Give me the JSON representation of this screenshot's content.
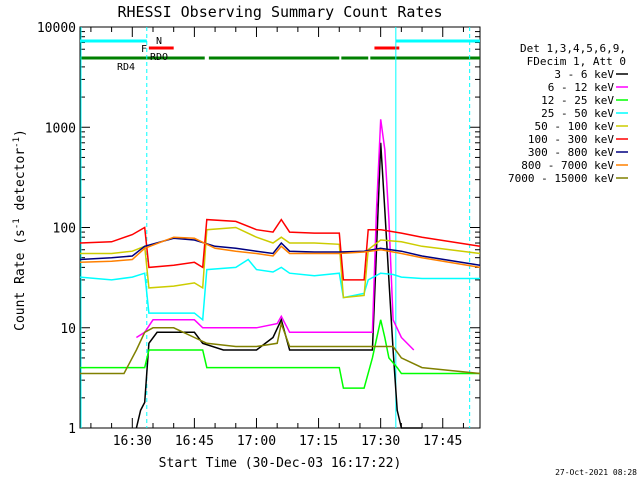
{
  "chart_data": {
    "type": "line",
    "title": "RHESSI Observing Summary Count Rates",
    "xlabel": "Start Time (30-Dec-03 16:17:22)",
    "ylabel": "Count Rate (s⁻¹ detector⁻¹)",
    "ylabel_plain": "Count Rate (s",
    "ylabel_exp": "-1",
    "ylabel_mid": " detector",
    "ylabel_end": ")",
    "yscale": "log",
    "xlim": [
      "16:17:22",
      "17:54:00"
    ],
    "ylim": [
      1,
      10000
    ],
    "xticks": [
      "16:30",
      "16:45",
      "17:00",
      "17:15",
      "17:30",
      "17:45"
    ],
    "xtick_minutes": [
      990,
      1005,
      1020,
      1035,
      1050,
      1065
    ],
    "yticks": [
      "1",
      "10",
      "100",
      "1000",
      "10000"
    ],
    "ytick_values": [
      1,
      10,
      100,
      1000,
      10000
    ],
    "legend_header": [
      "Det 1,3,4,5,6,9,",
      "FDecim 1, Att 0"
    ],
    "legend_placement": "right",
    "timestamp": "27-Oct-2021 08:28",
    "flags": [
      {
        "label": "N",
        "color": "#00ffff",
        "segments": [
          [
            "16:17:22",
            "16:33:30"
          ],
          [
            "17:33:40",
            "17:54:00"
          ]
        ]
      },
      {
        "label": "F",
        "color": "#ff0000",
        "segments": [
          [
            "16:34:00",
            "16:40:00"
          ],
          [
            "17:28:30",
            "17:34:30"
          ]
        ]
      },
      {
        "label": "RDO",
        "color": "#008000",
        "segments": [
          [
            "16:17:22",
            "16:33:20"
          ]
        ]
      },
      {
        "label": "",
        "color": "#008000",
        "segments": [
          [
            "16:33:00",
            "16:47:30"
          ],
          [
            "16:48:30",
            "17:20:00"
          ],
          [
            "17:20:30",
            "17:27:00"
          ],
          [
            "17:27:30",
            "17:54:00"
          ]
        ]
      }
    ],
    "flag_labels_extra": [
      "RD4"
    ],
    "vlines": [
      {
        "time": "16:33:30",
        "style": "dashed",
        "color": "#00ffff"
      },
      {
        "time": "17:33:40",
        "style": "solid",
        "color": "#00ffff"
      },
      {
        "time": "17:51:30",
        "style": "dashed",
        "color": "#00ffff"
      }
    ],
    "series": [
      {
        "name": "3 - 6 keV",
        "color": "#000000",
        "x": [
          "16:31",
          "16:32",
          "16:33",
          "16:34",
          "16:36",
          "16:45",
          "16:47",
          "16:52",
          "16:58",
          "17:00",
          "17:04",
          "17:06",
          "17:08",
          "17:14",
          "17:18",
          "17:22",
          "17:26",
          "17:28",
          "17:29",
          "17:30",
          "17:31",
          "17:32",
          "17:33",
          "17:34",
          "17:35",
          "17:37",
          "17:40"
        ],
        "y": [
          1,
          1.5,
          1.8,
          7,
          9,
          9,
          7,
          6,
          6,
          6,
          8,
          12,
          6,
          6,
          6,
          6,
          6,
          6,
          60,
          700,
          150,
          30,
          6,
          1.5,
          1,
          1,
          1
        ]
      },
      {
        "name": "6 - 12 keV",
        "color": "#ff00ff",
        "x": [
          "16:31",
          "16:33",
          "16:35",
          "16:40",
          "16:45",
          "16:47",
          "16:52",
          "17:00",
          "17:05",
          "17:06",
          "17:08",
          "17:14",
          "17:18",
          "17:22",
          "17:26",
          "17:28",
          "17:29",
          "17:30",
          "17:31",
          "17:32",
          "17:33",
          "17:35",
          "17:38"
        ],
        "y": [
          8,
          9,
          12,
          12,
          12,
          10,
          10,
          10,
          11,
          13,
          9,
          9,
          9,
          9,
          9,
          9,
          150,
          1200,
          600,
          120,
          12,
          8,
          6
        ]
      },
      {
        "name": "12 - 25 keV",
        "color": "#00ff00",
        "x": [
          "16:17",
          "16:33",
          "16:34",
          "16:47",
          "16:48",
          "17:20",
          "17:21",
          "17:26",
          "17:28",
          "17:30",
          "17:31",
          "17:32",
          "17:34",
          "17:35",
          "17:54"
        ],
        "y": [
          4,
          4,
          6,
          6,
          4,
          4,
          2.5,
          2.5,
          5,
          12,
          8,
          5,
          4,
          3.5,
          3.5
        ]
      },
      {
        "name": "25 - 50 keV",
        "color": "#00ffff",
        "x": [
          "16:17",
          "16:25",
          "16:30",
          "16:33",
          "16:34",
          "16:40",
          "16:45",
          "16:47",
          "16:48",
          "16:55",
          "16:58",
          "17:00",
          "17:04",
          "17:06",
          "17:08",
          "17:14",
          "17:20",
          "17:21",
          "17:26",
          "17:27",
          "17:30",
          "17:33",
          "17:35",
          "17:40",
          "17:54"
        ],
        "y": [
          32,
          30,
          32,
          35,
          14,
          14,
          14,
          12,
          38,
          40,
          48,
          38,
          36,
          40,
          35,
          33,
          35,
          20,
          22,
          30,
          35,
          34,
          32,
          31,
          31
        ]
      },
      {
        "name": "50 - 100 keV",
        "color": "#cccc00",
        "x": [
          "16:17",
          "16:25",
          "16:30",
          "16:33",
          "16:34",
          "16:40",
          "16:45",
          "16:47",
          "16:48",
          "16:55",
          "17:00",
          "17:04",
          "17:06",
          "17:08",
          "17:14",
          "17:20",
          "17:21",
          "17:26",
          "17:27",
          "17:30",
          "17:35",
          "17:40",
          "17:54"
        ],
        "y": [
          55,
          55,
          58,
          65,
          25,
          26,
          28,
          25,
          95,
          100,
          80,
          70,
          80,
          70,
          70,
          68,
          20,
          21,
          60,
          75,
          72,
          65,
          55
        ]
      },
      {
        "name": "100 - 300 keV",
        "color": "#ff0000",
        "x": [
          "16:17",
          "16:25",
          "16:30",
          "16:33",
          "16:34",
          "16:40",
          "16:45",
          "16:47",
          "16:48",
          "16:55",
          "17:00",
          "17:04",
          "17:06",
          "17:08",
          "17:14",
          "17:20",
          "17:21",
          "17:26",
          "17:27",
          "17:30",
          "17:35",
          "17:40",
          "17:54"
        ],
        "y": [
          70,
          72,
          85,
          100,
          40,
          42,
          45,
          40,
          120,
          115,
          95,
          90,
          120,
          90,
          88,
          88,
          30,
          30,
          95,
          95,
          88,
          80,
          65
        ]
      },
      {
        "name": "300 - 800 keV",
        "color": "#000080",
        "x": [
          "16:17",
          "16:25",
          "16:30",
          "16:33",
          "16:40",
          "16:45",
          "16:50",
          "16:55",
          "17:00",
          "17:04",
          "17:06",
          "17:08",
          "17:14",
          "17:20",
          "17:26",
          "17:30",
          "17:35",
          "17:40",
          "17:54"
        ],
        "y": [
          48,
          50,
          52,
          65,
          78,
          75,
          65,
          62,
          58,
          55,
          70,
          58,
          57,
          57,
          58,
          62,
          58,
          52,
          42
        ]
      },
      {
        "name": "800 - 7000 keV",
        "color": "#ff8000",
        "x": [
          "16:17",
          "16:25",
          "16:30",
          "16:33",
          "16:40",
          "16:45",
          "16:50",
          "16:55",
          "17:00",
          "17:04",
          "17:06",
          "17:08",
          "17:14",
          "17:20",
          "17:26",
          "17:30",
          "17:35",
          "17:40",
          "17:54"
        ],
        "y": [
          45,
          46,
          48,
          62,
          80,
          78,
          62,
          58,
          55,
          52,
          65,
          55,
          55,
          55,
          57,
          60,
          55,
          50,
          40
        ]
      },
      {
        "name": "7000 - 15000 keV",
        "color": "#808000",
        "x": [
          "16:17",
          "16:28",
          "16:31",
          "16:33",
          "16:35",
          "16:40",
          "16:45",
          "16:48",
          "16:55",
          "17:00",
          "17:05",
          "17:06",
          "17:08",
          "17:14",
          "17:20",
          "17:26",
          "17:30",
          "17:33",
          "17:35",
          "17:40",
          "17:54"
        ],
        "y": [
          3.5,
          3.5,
          6,
          9,
          10,
          10,
          8,
          7,
          6.5,
          6.5,
          7,
          11,
          6.5,
          6.5,
          6.5,
          6.5,
          6.5,
          6.5,
          5,
          4,
          3.5
        ]
      }
    ]
  }
}
